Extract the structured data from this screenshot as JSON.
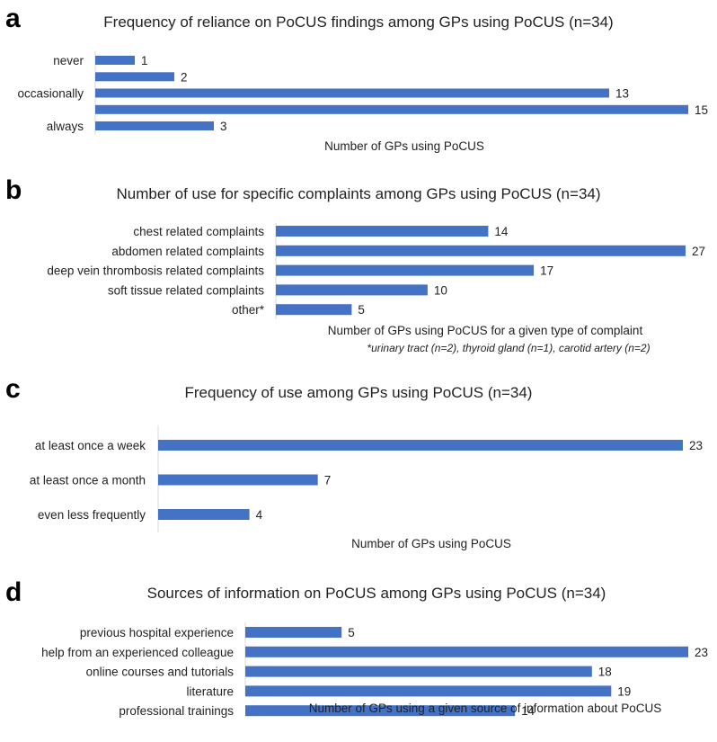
{
  "figure": {
    "colors": {
      "bar": "#4472c4",
      "axis": "#d9d9d9"
    }
  },
  "chart_data": [
    {
      "panel": "a",
      "type": "bar",
      "orientation": "horizontal",
      "title": "Frequency of reliance on PoCUS findings among GPs using PoCUS (n=34)",
      "categories": [
        "never",
        "",
        "occasionally",
        "",
        "always"
      ],
      "values": [
        1,
        2,
        13,
        15,
        3
      ],
      "xlabel": "Number of GPs using PoCUS",
      "ylabel": "",
      "xlim": [
        0,
        15
      ]
    },
    {
      "panel": "b",
      "type": "bar",
      "orientation": "horizontal",
      "title": "Number of use for specific complaints among GPs using PoCUS (n=34)",
      "categories": [
        "chest related complaints",
        "abdomen related complaints",
        "deep vein thrombosis related complaints",
        "soft tissue related complaints",
        "other*"
      ],
      "values": [
        14,
        27,
        17,
        10,
        5
      ],
      "xlabel": "Number of GPs using PoCUS for a given type of complaint",
      "note": "*urinary tract (n=2), thyroid gland (n=1), carotid artery (n=2)",
      "ylabel": "",
      "xlim": [
        0,
        27
      ]
    },
    {
      "panel": "c",
      "type": "bar",
      "orientation": "horizontal",
      "title": "Frequency of use among GPs using PoCUS (n=34)",
      "categories": [
        "at least once a week",
        "at least once a month",
        "even less frequently"
      ],
      "values": [
        23,
        7,
        4
      ],
      "xlabel": "Number of GPs using PoCUS",
      "ylabel": "",
      "xlim": [
        0,
        23
      ]
    },
    {
      "panel": "d",
      "type": "bar",
      "orientation": "horizontal",
      "title": "Sources of information on PoCUS among GPs using PoCUS (n=34)",
      "categories": [
        "previous hospital experience",
        "help from an experienced colleague",
        "online courses and tutorials",
        "literature",
        "professional trainings"
      ],
      "values": [
        5,
        23,
        18,
        19,
        14
      ],
      "xlabel": "Number of GPs using a given source of information about PoCUS",
      "ylabel": "",
      "xlim": [
        0,
        23
      ]
    }
  ]
}
